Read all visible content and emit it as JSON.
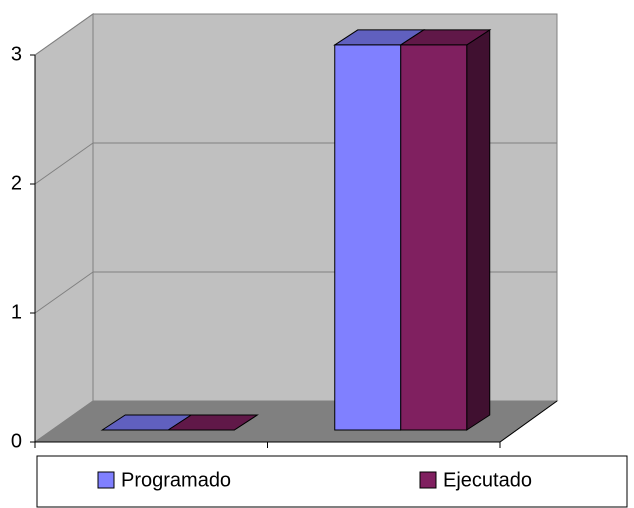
{
  "chart_data": {
    "type": "bar3d",
    "categories": [
      null,
      null
    ],
    "series": [
      {
        "name": "Programado",
        "color": "#8080ff",
        "values": [
          0,
          3
        ]
      },
      {
        "name": "Ejecutado",
        "color": "#802060",
        "values": [
          0,
          3
        ]
      }
    ],
    "ylim": [
      0,
      3
    ],
    "yticks": [
      0,
      1,
      2,
      3
    ],
    "grid": true,
    "legend": "bottom"
  }
}
